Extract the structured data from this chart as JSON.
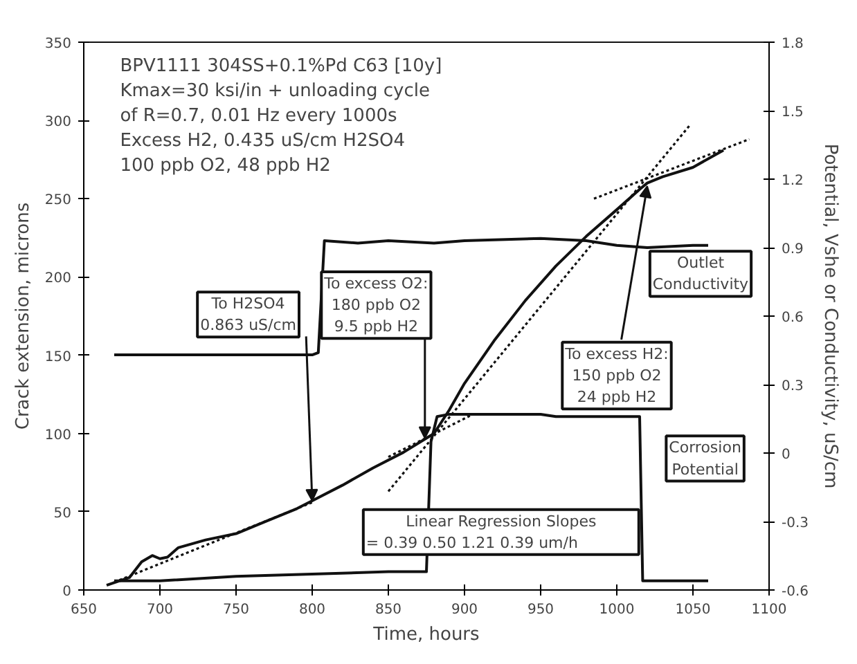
{
  "chart_data": {
    "type": "line",
    "xlabel": "Time, hours",
    "ylabel": "Crack extension, microns",
    "y2label": "Potential, Vshe or Conductivity, uS/cm",
    "xlim": [
      650,
      1100
    ],
    "xticks": [
      650,
      700,
      750,
      800,
      850,
      900,
      950,
      1000,
      1050,
      1100
    ],
    "ylim": [
      0,
      350
    ],
    "yticks": [
      0,
      50,
      100,
      150,
      200,
      250,
      300,
      350
    ],
    "y2lim": [
      -0.6,
      1.8
    ],
    "y2ticks": [
      -0.6,
      -0.3,
      0,
      0.3,
      0.6,
      0.9,
      1.2,
      1.5,
      1.8
    ],
    "grid": false,
    "marker": "none",
    "series": [
      {
        "color": "#111111",
        "line_style": "solid",
        "x": [
          665,
          680,
          688,
          695,
          700,
          705,
          712,
          730,
          750,
          770,
          790,
          800,
          820,
          840,
          860,
          875,
          880,
          890,
          900,
          920,
          940,
          960,
          980,
          1000,
          1015,
          1020,
          1030,
          1050,
          1070
        ],
        "values": [
          3,
          8,
          18,
          22,
          20,
          21,
          27,
          32,
          36,
          44,
          52,
          57,
          67,
          78,
          88,
          97,
          100,
          115,
          132,
          160,
          185,
          207,
          226,
          243,
          256,
          260,
          264,
          270,
          281
        ]
      },
      {
        "name": "Outlet\nConductivity",
        "axis": "y2",
        "color": "#111111",
        "line_style": "solid",
        "x": [
          670,
          700,
          750,
          800,
          804,
          808,
          830,
          850,
          880,
          900,
          950,
          980,
          1000,
          1020,
          1050,
          1060
        ],
        "values": [
          0.43,
          0.43,
          0.43,
          0.43,
          0.44,
          0.93,
          0.92,
          0.93,
          0.92,
          0.93,
          0.94,
          0.93,
          0.91,
          0.9,
          0.91,
          0.91
        ]
      },
      {
        "name": "Corrosion\nPotential",
        "axis": "y2",
        "color": "#111111",
        "line_style": "solid",
        "x": [
          670,
          700,
          750,
          800,
          850,
          875,
          878,
          882,
          890,
          950,
          960,
          1000,
          1015,
          1017,
          1060
        ],
        "values": [
          -0.56,
          -0.56,
          -0.54,
          -0.53,
          -0.52,
          -0.52,
          0.05,
          0.16,
          0.17,
          0.17,
          0.16,
          0.16,
          0.16,
          -0.56,
          -0.56
        ]
      },
      {
        "type": "line",
        "color": "#111111",
        "line_style": "dotted",
        "x": [
          670,
          800
        ],
        "values": [
          5,
          56
        ]
      },
      {
        "type": "line",
        "color": "#111111",
        "line_style": "dotted",
        "x": [
          850,
          905
        ],
        "values": [
          85,
          112
        ]
      },
      {
        "type": "line",
        "color": "#111111",
        "line_style": "dotted",
        "x": [
          850,
          1048
        ],
        "values": [
          63,
          297
        ]
      },
      {
        "type": "line",
        "color": "#111111",
        "line_style": "dotted",
        "x": [
          985,
          1087
        ],
        "values": [
          250,
          288
        ]
      }
    ],
    "annotations": [
      "BPV1111 304SS+0.1%Pd  C63 [10y]\nKmax=30 ksi/in + unloading cycle\n  of R=0.7, 0.01 Hz every 1000s\nExcess H2, 0.435 uS/cm H2SO4\n  100 ppb O2, 48 ppb H2",
      {
        "text": "To H2SO4\n0.863 uS/cm",
        "x": 800,
        "y": 57
      },
      {
        "text": "To excess O2:\n180 ppb O2\n9.5 ppb H2",
        "x": 874,
        "y": 97
      },
      {
        "text": "To excess H2:\n150 ppb O2\n24 ppb H2",
        "x": 1020,
        "y": 258
      },
      "Linear Regression Slopes\n= 0.39     0.50     1.21     0.39 um/h"
    ]
  }
}
